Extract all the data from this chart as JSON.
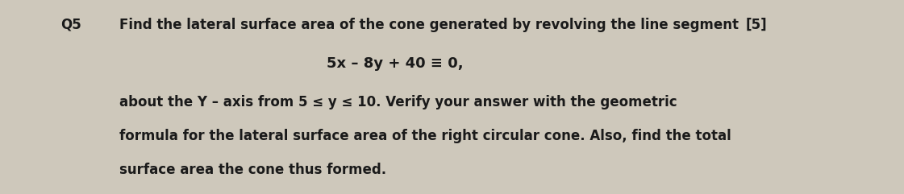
{
  "background_color": "#cec8bb",
  "text_color": "#1a1a1a",
  "q_label": "Q5",
  "marks": "[5]",
  "line1": "Find the lateral surface area of the cone generated by revolving the line segment",
  "line2": "5x – 8y + 40 ≡ 0,",
  "line3": "about the Y – axis from 5 ≤ y ≤ 10. Verify your answer with the geometric",
  "line4": "formula for the lateral surface area of the right circular cone. Also, find the total",
  "line5": "surface area the cone thus formed.",
  "font_size_main": 12.0,
  "font_size_eq": 13.0,
  "font_weight": "bold",
  "fig_width": 11.21,
  "fig_height": 2.41,
  "dpi": 100
}
